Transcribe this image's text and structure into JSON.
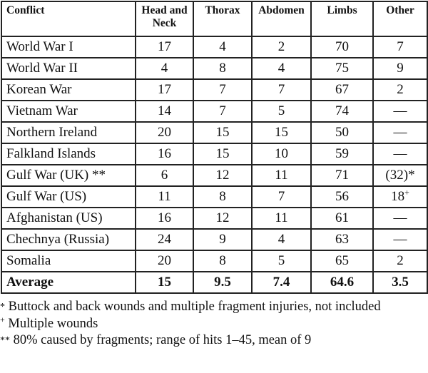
{
  "table": {
    "headers": [
      "Conflict",
      "Head and Neck",
      "Thorax",
      "Abdomen",
      "Limbs",
      "Other"
    ],
    "rows": [
      {
        "conflict": "World War I",
        "mark": "",
        "values": [
          "17",
          "4",
          "2",
          "70",
          "7"
        ],
        "other_mark": ""
      },
      {
        "conflict": "World War II",
        "mark": "",
        "values": [
          "4",
          "8",
          "4",
          "75",
          "9"
        ],
        "other_mark": ""
      },
      {
        "conflict": "Korean War",
        "mark": "",
        "values": [
          "17",
          "7",
          "7",
          "67",
          "2"
        ],
        "other_mark": ""
      },
      {
        "conflict": "Vietnam War",
        "mark": "",
        "values": [
          "14",
          "7",
          "5",
          "74",
          "—"
        ],
        "other_mark": ""
      },
      {
        "conflict": "Northern Ireland",
        "mark": "",
        "values": [
          "20",
          "15",
          "15",
          "50",
          "—"
        ],
        "other_mark": ""
      },
      {
        "conflict": "Falkland Islands",
        "mark": "",
        "values": [
          "16",
          "15",
          "10",
          "59",
          "—"
        ],
        "other_mark": ""
      },
      {
        "conflict": "Gulf War (UK)",
        "mark": " **",
        "values": [
          "6",
          "12",
          "11",
          "71",
          "(32)*"
        ],
        "other_mark": ""
      },
      {
        "conflict": "Gulf War (US)",
        "mark": "",
        "values": [
          "11",
          "8",
          "7",
          "56",
          "18"
        ],
        "other_mark": "+"
      },
      {
        "conflict": "Afghanistan (US)",
        "mark": "",
        "values": [
          "16",
          "12",
          "11",
          "61",
          "—"
        ],
        "other_mark": ""
      },
      {
        "conflict": "Chechnya (Russia)",
        "mark": "",
        "values": [
          "24",
          "9",
          "4",
          "63",
          "—"
        ],
        "other_mark": ""
      },
      {
        "conflict": "Somalia",
        "mark": "",
        "values": [
          "20",
          "8",
          "5",
          "65",
          "2"
        ],
        "other_mark": ""
      }
    ],
    "average": {
      "label": "Average",
      "values": [
        "15",
        "9.5",
        "7.4",
        "64.6",
        "3.5"
      ]
    }
  },
  "footnotes": [
    {
      "mark": "*",
      "text": " Buttock and back wounds and multiple fragment injuries, not included"
    },
    {
      "mark": "+",
      "text": " Multiple wounds"
    },
    {
      "mark": "**",
      "text": " 80% caused by fragments; range of hits 1–45, mean of 9"
    }
  ]
}
